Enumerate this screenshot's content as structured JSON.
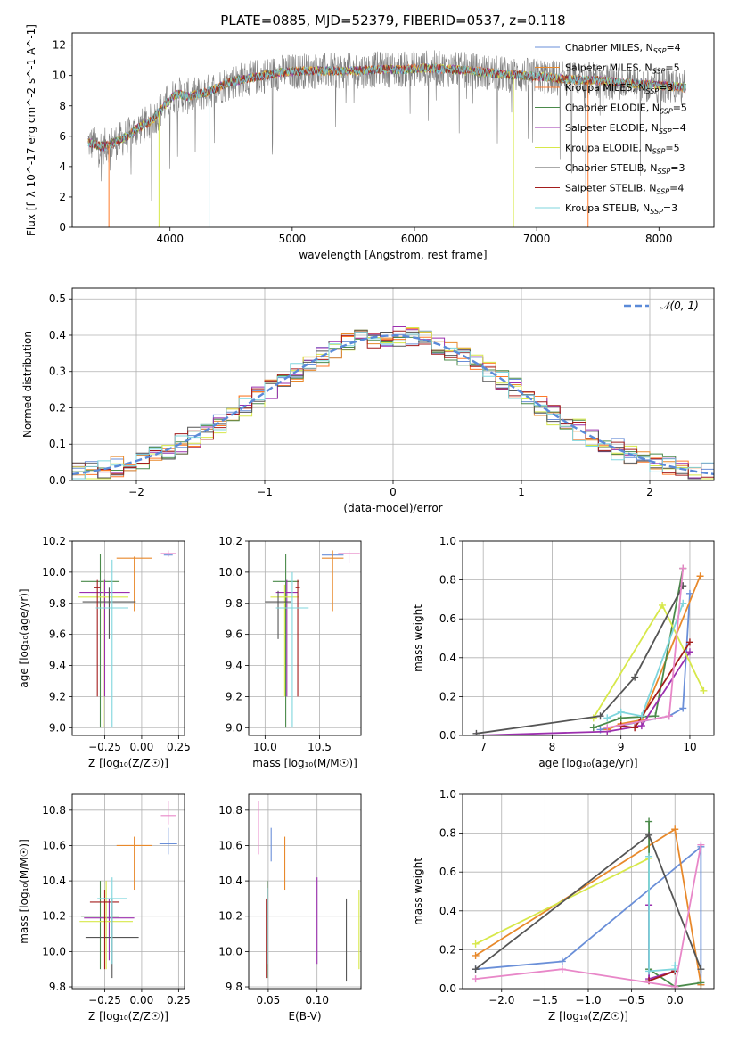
{
  "colors": {
    "series": [
      "#6a8fd8",
      "#e8892b",
      "#ff7a2a",
      "#4a8a4a",
      "#9b2fae",
      "#d7e84a",
      "#555555",
      "#a31c1c",
      "#7fd6dd"
    ],
    "model_alt": [
      "#6a8fd8",
      "#e8892b",
      "#4a8a4a",
      "#9b2fae",
      "#d7e84a",
      "#555555",
      "#a31c1c",
      "#7fd6dd",
      "#e887c8"
    ],
    "spectrum": "#808080",
    "normal": "#5a8ad8",
    "grid": "#b0b0b0"
  },
  "chart_data": [
    {
      "id": "spectrum",
      "type": "line",
      "title": "PLATE=0885, MJD=52379, FIBERID=0537, z=0.118",
      "xlabel": "wavelength [Angstrom, rest frame]",
      "ylabel": "Flux [f_λ 10^-17 erg cm^-2 s^-1 A^-1]",
      "xlim": [
        3200,
        8450
      ],
      "ylim": [
        0,
        12.8
      ],
      "xticks": [
        4000,
        5000,
        6000,
        7000,
        8000
      ],
      "yticks": [
        0,
        2,
        4,
        6,
        8,
        10,
        12
      ],
      "grid": false,
      "legend_position": "right",
      "legend": [
        {
          "label": "Chabrier MILES, N",
          "sub": "SSP",
          "tail": "=4"
        },
        {
          "label": "Salpeter MILES, N",
          "sub": "SSP",
          "tail": "=5"
        },
        {
          "label": "Kroupa MILES, N",
          "sub": "SSP",
          "tail": "=3"
        },
        {
          "label": "Chabrier ELODIE, N",
          "sub": "SSP",
          "tail": "=5"
        },
        {
          "label": "Salpeter ELODIE, N",
          "sub": "SSP",
          "tail": "=4"
        },
        {
          "label": "Kroupa ELODIE, N",
          "sub": "SSP",
          "tail": "=5"
        },
        {
          "label": "Chabrier STELIB, N",
          "sub": "SSP",
          "tail": "=3"
        },
        {
          "label": "Salpeter STELIB, N",
          "sub": "SSP",
          "tail": "=4"
        },
        {
          "label": "Kroupa STELIB, N",
          "sub": "SSP",
          "tail": "=3"
        }
      ],
      "continuum": [
        [
          3330,
          5.6
        ],
        [
          3450,
          5.3
        ],
        [
          3550,
          5.6
        ],
        [
          3650,
          6.0
        ],
        [
          3750,
          6.6
        ],
        [
          3850,
          7.0
        ],
        [
          3950,
          8.0
        ],
        [
          4050,
          8.8
        ],
        [
          4150,
          8.6
        ],
        [
          4300,
          8.9
        ],
        [
          4500,
          9.6
        ],
        [
          4700,
          9.9
        ],
        [
          4900,
          10.2
        ],
        [
          5100,
          10.3
        ],
        [
          5300,
          10.3
        ],
        [
          5500,
          10.3
        ],
        [
          5700,
          10.4
        ],
        [
          5900,
          10.4
        ],
        [
          6100,
          10.5
        ],
        [
          6300,
          10.4
        ],
        [
          6500,
          10.3
        ],
        [
          6700,
          10.1
        ],
        [
          6900,
          10.0
        ],
        [
          7100,
          9.9
        ],
        [
          7300,
          9.7
        ],
        [
          7500,
          9.7
        ],
        [
          7700,
          9.5
        ],
        [
          7900,
          9.4
        ],
        [
          8100,
          9.3
        ],
        [
          8220,
          9.2
        ]
      ]
    },
    {
      "id": "residuals",
      "type": "area",
      "xlabel": "(data-model)/error",
      "ylabel": "Normed distribution",
      "xlim": [
        -2.5,
        2.5
      ],
      "ylim": [
        0,
        0.53
      ],
      "xticks": [
        -2,
        -1,
        0,
        1,
        2
      ],
      "yticks": [
        0.0,
        0.1,
        0.2,
        0.3,
        0.4,
        0.5
      ],
      "grid": true,
      "legend_position": "top-right",
      "normal_label": "𝒩(0, 1)",
      "bin_width": 0.1
    },
    {
      "id": "age_vs_Z",
      "type": "scatter",
      "xlabel": "Z [log₁₀(Z/Z☉)]",
      "ylabel": "age  [log₁₀(age/yr)]",
      "xlim": [
        -0.47,
        0.29
      ],
      "ylim": [
        8.95,
        10.2
      ],
      "xticks": [
        -0.25,
        0.0,
        0.25
      ],
      "xticklabels": [
        "−0.25",
        "0.00",
        "0.25"
      ],
      "yticks": [
        9.0,
        9.2,
        9.4,
        9.6,
        9.8,
        10.0,
        10.2
      ],
      "grid": true,
      "points": [
        {
          "x": 0.18,
          "xerr": 0.03,
          "y": 10.11,
          "yl": 10.1,
          "yh": 10.12,
          "c": 0
        },
        {
          "x": -0.05,
          "xerr": 0.12,
          "y": 10.09,
          "yl": 9.75,
          "yh": 10.1,
          "c": 1
        },
        {
          "x": -0.28,
          "xerr": 0.13,
          "y": 9.94,
          "yl": 9.0,
          "yh": 10.12,
          "c": 2
        },
        {
          "x": -0.25,
          "xerr": 0.17,
          "y": 9.87,
          "yl": 9.2,
          "yh": 9.95,
          "c": 3
        },
        {
          "x": -0.26,
          "xerr": 0.17,
          "y": 9.84,
          "yl": 9.0,
          "yh": 9.95,
          "c": 4
        },
        {
          "x": -0.22,
          "xerr": 0.18,
          "y": 9.81,
          "yl": 9.57,
          "yh": 9.9,
          "c": 5
        },
        {
          "x": -0.3,
          "xerr": 0.02,
          "y": 9.9,
          "yl": 9.2,
          "yh": 9.95,
          "c": 6
        },
        {
          "x": -0.2,
          "xerr": 0.11,
          "y": 9.77,
          "yl": 9.0,
          "yh": 10.08,
          "c": 7
        },
        {
          "x": 0.18,
          "xerr": 0.05,
          "y": 10.12,
          "yl": 10.1,
          "yh": 10.14,
          "c": 8
        }
      ]
    },
    {
      "id": "age_vs_mass",
      "type": "scatter",
      "xlabel": "mass [log₁₀(M/M☉)]",
      "ylabel": "",
      "xlim": [
        9.85,
        10.88
      ],
      "ylim": [
        8.95,
        10.2
      ],
      "xticks": [
        10.0,
        10.5
      ],
      "xticklabels": [
        "10.0",
        "10.5"
      ],
      "yticks": [
        9.0,
        9.2,
        9.4,
        9.6,
        9.8,
        10.0,
        10.2
      ],
      "grid": true,
      "points": [
        {
          "x": 10.62,
          "xerr": 0.1,
          "y": 10.11,
          "yl": 10.1,
          "yh": 10.12,
          "c": 0
        },
        {
          "x": 10.62,
          "xerr": 0.1,
          "y": 10.09,
          "yl": 9.75,
          "yh": 10.14,
          "c": 1
        },
        {
          "x": 10.19,
          "xerr": 0.12,
          "y": 9.94,
          "yl": 9.0,
          "yh": 10.12,
          "c": 2
        },
        {
          "x": 10.2,
          "xerr": 0.1,
          "y": 9.87,
          "yl": 9.2,
          "yh": 9.95,
          "c": 3
        },
        {
          "x": 10.18,
          "xerr": 0.13,
          "y": 9.84,
          "yl": 9.2,
          "yh": 9.92,
          "c": 4
        },
        {
          "x": 10.12,
          "xerr": 0.12,
          "y": 9.81,
          "yl": 9.57,
          "yh": 9.88,
          "c": 5
        },
        {
          "x": 10.3,
          "xerr": 0.02,
          "y": 9.9,
          "yl": 9.2,
          "yh": 9.95,
          "c": 6
        },
        {
          "x": 10.25,
          "xerr": 0.15,
          "y": 9.77,
          "yl": 9.0,
          "yh": 10.0,
          "c": 7
        },
        {
          "x": 10.77,
          "xerr": 0.1,
          "y": 10.12,
          "yl": 10.06,
          "yh": 10.14,
          "c": 8
        }
      ]
    },
    {
      "id": "weight_vs_age",
      "type": "line",
      "xlabel": "age  [log₁₀(age/yr)]",
      "ylabel": "mass weight",
      "xlim": [
        6.7,
        10.35
      ],
      "ylim": [
        0,
        1.0
      ],
      "xticks": [
        7,
        8,
        9,
        10
      ],
      "yticks": [
        0.0,
        0.2,
        0.4,
        0.6,
        0.8,
        1.0
      ],
      "grid": true,
      "series": [
        {
          "c": 0,
          "pts": [
            [
              8.7,
              0.03
            ],
            [
              9.7,
              0.1
            ],
            [
              9.9,
              0.14
            ],
            [
              10.0,
              0.73
            ]
          ]
        },
        {
          "c": 1,
          "pts": [
            [
              8.8,
              0.03
            ],
            [
              9.0,
              0.06
            ],
            [
              9.3,
              0.08
            ],
            [
              10.15,
              0.82
            ]
          ]
        },
        {
          "c": 2,
          "pts": [
            [
              8.6,
              0.04
            ],
            [
              9.0,
              0.09
            ],
            [
              9.5,
              0.1
            ],
            [
              9.9,
              0.86
            ]
          ]
        },
        {
          "c": 3,
          "pts": [
            [
              6.9,
              0.0
            ],
            [
              8.8,
              0.02
            ],
            [
              9.3,
              0.05
            ],
            [
              10.0,
              0.43
            ]
          ]
        },
        {
          "c": 4,
          "pts": [
            [
              8.6,
              0.09
            ],
            [
              9.6,
              0.67
            ],
            [
              10.2,
              0.23
            ]
          ]
        },
        {
          "c": 5,
          "pts": [
            [
              6.9,
              0.01
            ],
            [
              8.7,
              0.1
            ],
            [
              9.2,
              0.3
            ],
            [
              9.9,
              0.77
            ]
          ]
        },
        {
          "c": 6,
          "pts": [
            [
              9.0,
              0.05
            ],
            [
              9.2,
              0.04
            ],
            [
              10.0,
              0.48
            ]
          ]
        },
        {
          "c": 7,
          "pts": [
            [
              8.8,
              0.09
            ],
            [
              9.0,
              0.12
            ],
            [
              9.3,
              0.1
            ],
            [
              9.9,
              0.68
            ]
          ]
        },
        {
          "c": 8,
          "pts": [
            [
              8.8,
              0.04
            ],
            [
              9.7,
              0.1
            ],
            [
              9.9,
              0.86
            ]
          ]
        }
      ]
    },
    {
      "id": "mass_vs_Z",
      "type": "scatter",
      "xlabel": "Z [log₁₀(Z/Z☉)]",
      "ylabel": "mass [log₁₀(M/M☉)]",
      "xlim": [
        -0.47,
        0.29
      ],
      "ylim": [
        9.79,
        10.89
      ],
      "xticks": [
        -0.25,
        0.0,
        0.25
      ],
      "xticklabels": [
        "−0.25",
        "0.00",
        "0.25"
      ],
      "yticks": [
        9.8,
        10.0,
        10.2,
        10.4,
        10.6,
        10.8
      ],
      "grid": true,
      "points": [
        {
          "x": 0.18,
          "xerr": 0.06,
          "y": 10.61,
          "yl": 10.55,
          "yh": 10.7,
          "c": 0
        },
        {
          "x": -0.05,
          "xerr": 0.12,
          "y": 10.6,
          "yl": 10.35,
          "yh": 10.65,
          "c": 1
        },
        {
          "x": -0.28,
          "xerr": 0.13,
          "y": 10.2,
          "yl": 9.9,
          "yh": 10.4,
          "c": 2
        },
        {
          "x": -0.22,
          "xerr": 0.17,
          "y": 10.19,
          "yl": 9.95,
          "yh": 10.3,
          "c": 3
        },
        {
          "x": -0.24,
          "xerr": 0.18,
          "y": 10.17,
          "yl": 9.9,
          "yh": 10.4,
          "c": 4
        },
        {
          "x": -0.2,
          "xerr": 0.18,
          "y": 10.08,
          "yl": 9.85,
          "yh": 10.3,
          "c": 5
        },
        {
          "x": -0.25,
          "xerr": 0.1,
          "y": 10.28,
          "yl": 9.9,
          "yh": 10.35,
          "c": 6
        },
        {
          "x": -0.2,
          "xerr": 0.1,
          "y": 10.3,
          "yl": 9.93,
          "yh": 10.42,
          "c": 7
        },
        {
          "x": 0.18,
          "xerr": 0.05,
          "y": 10.77,
          "yl": 10.72,
          "yh": 10.85,
          "c": 8
        }
      ]
    },
    {
      "id": "mass_vs_EBV",
      "type": "scatter",
      "xlabel": "E(B-V)",
      "ylabel": "",
      "xlim": [
        0.03,
        0.145
      ],
      "ylim": [
        9.79,
        10.89
      ],
      "xticks": [
        0.05,
        0.1
      ],
      "xticklabels": [
        "0.05",
        "0.10"
      ],
      "yticks": [
        9.8,
        10.0,
        10.2,
        10.4,
        10.6,
        10.8
      ],
      "grid": true,
      "points": [
        {
          "x": 0.053,
          "yl": 10.51,
          "yh": 10.7,
          "c": 0
        },
        {
          "x": 0.067,
          "yl": 10.35,
          "yh": 10.65,
          "c": 1
        },
        {
          "x": 0.049,
          "yl": 9.85,
          "yh": 10.4,
          "c": 2
        },
        {
          "x": 0.1,
          "yl": 9.93,
          "yh": 10.42,
          "c": 3
        },
        {
          "x": 0.143,
          "yl": 9.9,
          "yh": 10.35,
          "c": 4
        },
        {
          "x": 0.13,
          "yl": 9.83,
          "yh": 10.3,
          "c": 5
        },
        {
          "x": 0.048,
          "yl": 9.85,
          "yh": 10.3,
          "c": 6
        },
        {
          "x": 0.049,
          "yl": 9.93,
          "yh": 10.36,
          "c": 7
        },
        {
          "x": 0.04,
          "yl": 10.55,
          "yh": 10.85,
          "c": 8
        }
      ]
    },
    {
      "id": "weight_vs_Z",
      "type": "line",
      "xlabel": "Z [log₁₀(Z/Z☉)]",
      "ylabel": "mass weight",
      "xlim": [
        -2.45,
        0.45
      ],
      "ylim": [
        0,
        1.0
      ],
      "xticks": [
        -2.0,
        -1.5,
        -1.0,
        -0.5,
        0.0
      ],
      "xticklabels": [
        "−2.0",
        "−1.5",
        "−1.0",
        "−0.5",
        "0.0"
      ],
      "yticks": [
        0.0,
        0.2,
        0.4,
        0.6,
        0.8,
        1.0
      ],
      "grid": true,
      "series": [
        {
          "c": 0,
          "pts": [
            [
              -2.3,
              0.1
            ],
            [
              -1.3,
              0.14
            ],
            [
              0.3,
              0.73
            ],
            [
              0.3,
              0.02
            ]
          ]
        },
        {
          "c": 1,
          "pts": [
            [
              -2.3,
              0.17
            ],
            [
              0.0,
              0.82
            ],
            [
              0.3,
              0.02
            ]
          ]
        },
        {
          "c": 2,
          "pts": [
            [
              -0.3,
              0.86
            ],
            [
              -0.3,
              0.1
            ],
            [
              0.0,
              0.01
            ],
            [
              0.3,
              0.03
            ]
          ]
        },
        {
          "c": 3,
          "pts": [
            [
              -0.3,
              0.43
            ],
            [
              -0.3,
              0.05
            ],
            [
              0.0,
              0.09
            ]
          ]
        },
        {
          "c": 4,
          "pts": [
            [
              -2.3,
              0.23
            ],
            [
              -0.3,
              0.67
            ]
          ]
        },
        {
          "c": 5,
          "pts": [
            [
              -2.3,
              0.1
            ],
            [
              -0.3,
              0.79
            ],
            [
              0.3,
              0.1
            ]
          ]
        },
        {
          "c": 6,
          "pts": [
            [
              -0.3,
              0.04
            ],
            [
              0.0,
              0.09
            ]
          ]
        },
        {
          "c": 7,
          "pts": [
            [
              -0.3,
              0.68
            ],
            [
              -0.3,
              0.09
            ],
            [
              0.0,
              0.1
            ],
            [
              0.0,
              0.12
            ]
          ]
        },
        {
          "c": 8,
          "pts": [
            [
              -2.3,
              0.05
            ],
            [
              -1.3,
              0.1
            ],
            [
              0.0,
              0.01
            ],
            [
              0.3,
              0.74
            ]
          ]
        }
      ]
    }
  ]
}
